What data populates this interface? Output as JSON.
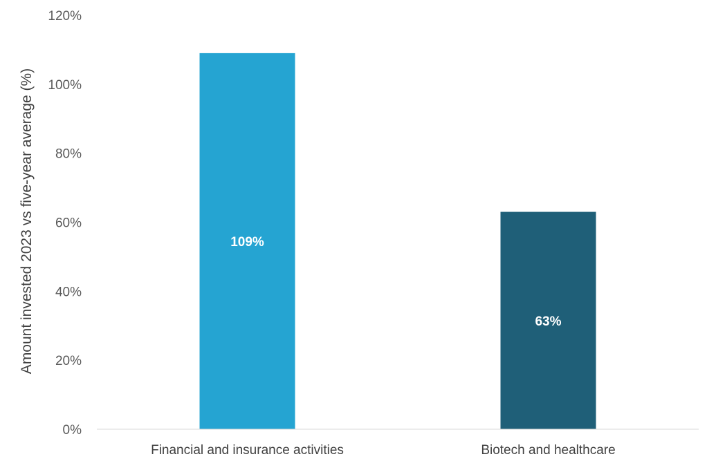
{
  "chart_data": {
    "type": "bar",
    "title": "",
    "xlabel": "",
    "ylabel": "Amount invested 2023 vs five-year average (%)",
    "categories": [
      "Financial and insurance activities",
      "Biotech and healthcare"
    ],
    "values": [
      109,
      63
    ],
    "data_labels": [
      "109%",
      "63%"
    ],
    "bar_colors": [
      "#25A4D2",
      "#1F5F78"
    ],
    "ylim": [
      0,
      120
    ],
    "yticks": [
      0,
      20,
      40,
      60,
      80,
      100,
      120
    ],
    "ytick_labels": [
      "0%",
      "20%",
      "40%",
      "60%",
      "80%",
      "100%",
      "120%"
    ],
    "grid": false,
    "legend": "none"
  }
}
